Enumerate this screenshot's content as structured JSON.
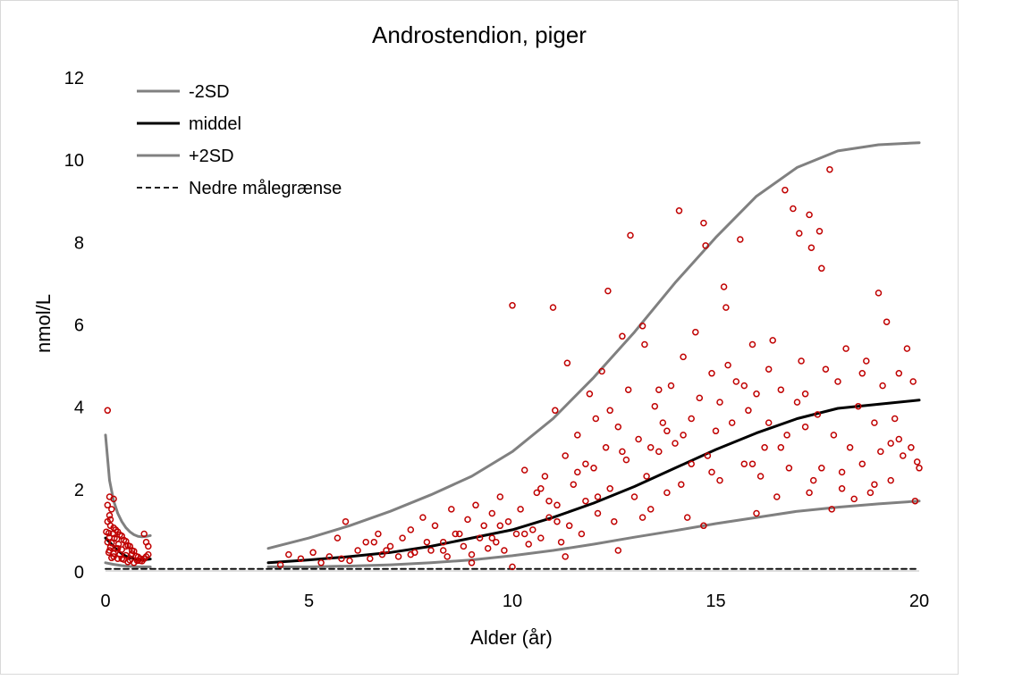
{
  "chart_data": {
    "type": "scatter",
    "title": "Androstendion, piger",
    "xlabel": "Alder (år)",
    "ylabel": "nmol/L",
    "xlim": [
      0,
      20
    ],
    "ylim": [
      0,
      12
    ],
    "xticks": [
      0,
      5,
      10,
      15,
      20
    ],
    "yticks": [
      0,
      2,
      4,
      6,
      8,
      10,
      12
    ],
    "grid": false,
    "legend_position": "top-left",
    "colors": {
      "sd_line": "#808080",
      "mean_line": "#000000",
      "limit_line": "#000000",
      "points": "#c00000"
    },
    "legend": [
      {
        "label": "-2SD",
        "style": "sd"
      },
      {
        "label": "middel",
        "style": "mean"
      },
      {
        "label": "+2SD",
        "style": "sd"
      },
      {
        "label": "Nedre målegrænse",
        "style": "dashed"
      }
    ],
    "series": [
      {
        "name": "+2SD",
        "style": "sd",
        "segments": [
          [
            [
              0,
              3.3
            ],
            [
              0.1,
              2.2
            ],
            [
              0.2,
              1.7
            ],
            [
              0.3,
              1.4
            ],
            [
              0.4,
              1.2
            ],
            [
              0.5,
              1.05
            ],
            [
              0.6,
              0.95
            ],
            [
              0.7,
              0.88
            ],
            [
              0.8,
              0.84
            ],
            [
              0.9,
              0.83
            ],
            [
              1.0,
              0.84
            ],
            [
              1.1,
              0.86
            ]
          ],
          [
            [
              4,
              0.55
            ],
            [
              5,
              0.8
            ],
            [
              6,
              1.1
            ],
            [
              7,
              1.45
            ],
            [
              8,
              1.85
            ],
            [
              9,
              2.3
            ],
            [
              10,
              2.9
            ],
            [
              11,
              3.7
            ],
            [
              12,
              4.7
            ],
            [
              13,
              5.8
            ],
            [
              14,
              7.0
            ],
            [
              15,
              8.1
            ],
            [
              16,
              9.1
            ],
            [
              17,
              9.8
            ],
            [
              18,
              10.2
            ],
            [
              19,
              10.35
            ],
            [
              20,
              10.4
            ]
          ]
        ]
      },
      {
        "name": "middel",
        "style": "mean",
        "segments": [
          [
            [
              0,
              0.8
            ],
            [
              0.1,
              0.7
            ],
            [
              0.2,
              0.6
            ],
            [
              0.3,
              0.5
            ],
            [
              0.4,
              0.42
            ],
            [
              0.5,
              0.36
            ],
            [
              0.6,
              0.32
            ],
            [
              0.7,
              0.3
            ],
            [
              0.8,
              0.28
            ],
            [
              0.9,
              0.28
            ],
            [
              1.0,
              0.28
            ],
            [
              1.1,
              0.29
            ]
          ],
          [
            [
              4,
              0.2
            ],
            [
              5,
              0.27
            ],
            [
              6,
              0.35
            ],
            [
              7,
              0.45
            ],
            [
              8,
              0.6
            ],
            [
              9,
              0.8
            ],
            [
              10,
              1.0
            ],
            [
              11,
              1.3
            ],
            [
              12,
              1.65
            ],
            [
              13,
              2.05
            ],
            [
              14,
              2.5
            ],
            [
              15,
              2.95
            ],
            [
              16,
              3.35
            ],
            [
              17,
              3.7
            ],
            [
              18,
              3.95
            ],
            [
              19,
              4.05
            ],
            [
              20,
              4.15
            ]
          ]
        ]
      },
      {
        "name": "-2SD",
        "style": "sd",
        "segments": [
          [
            [
              0,
              0.2
            ],
            [
              0.2,
              0.16
            ],
            [
              0.4,
              0.13
            ],
            [
              0.6,
              0.11
            ],
            [
              0.8,
              0.1
            ],
            [
              1.0,
              0.1
            ],
            [
              1.1,
              0.1
            ]
          ],
          [
            [
              4,
              0.1
            ],
            [
              5,
              0.1
            ],
            [
              6,
              0.12
            ],
            [
              7,
              0.15
            ],
            [
              8,
              0.2
            ],
            [
              9,
              0.27
            ],
            [
              10,
              0.37
            ],
            [
              11,
              0.5
            ],
            [
              12,
              0.65
            ],
            [
              13,
              0.82
            ],
            [
              14,
              0.98
            ],
            [
              15,
              1.15
            ],
            [
              16,
              1.3
            ],
            [
              17,
              1.45
            ],
            [
              18,
              1.55
            ],
            [
              19,
              1.63
            ],
            [
              20,
              1.7
            ]
          ]
        ]
      },
      {
        "name": "Nedre målegrænse",
        "style": "dashed",
        "segments": [
          [
            [
              0,
              0.05
            ],
            [
              20,
              0.05
            ]
          ]
        ]
      }
    ],
    "points": [
      [
        0.05,
        3.9
      ],
      [
        0.1,
        1.8
      ],
      [
        0.2,
        1.75
      ],
      [
        0.05,
        1.6
      ],
      [
        0.15,
        1.5
      ],
      [
        0.1,
        1.35
      ],
      [
        0.05,
        1.2
      ],
      [
        0.12,
        1.1
      ],
      [
        0.2,
        1.05
      ],
      [
        0.25,
        1.0
      ],
      [
        0.3,
        0.95
      ],
      [
        0.08,
        0.92
      ],
      [
        0.18,
        0.9
      ],
      [
        0.35,
        0.88
      ],
      [
        0.4,
        0.85
      ],
      [
        0.1,
        0.82
      ],
      [
        0.22,
        0.8
      ],
      [
        0.28,
        0.78
      ],
      [
        0.45,
        0.75
      ],
      [
        0.5,
        0.72
      ],
      [
        0.05,
        0.7
      ],
      [
        0.15,
        0.68
      ],
      [
        0.32,
        0.65
      ],
      [
        0.55,
        0.62
      ],
      [
        0.6,
        0.6
      ],
      [
        0.12,
        0.58
      ],
      [
        0.25,
        0.55
      ],
      [
        0.4,
        0.52
      ],
      [
        0.65,
        0.5
      ],
      [
        0.7,
        0.48
      ],
      [
        0.08,
        0.45
      ],
      [
        0.2,
        0.42
      ],
      [
        0.35,
        0.4
      ],
      [
        0.5,
        0.38
      ],
      [
        0.75,
        0.36
      ],
      [
        0.8,
        0.34
      ],
      [
        0.15,
        0.32
      ],
      [
        0.3,
        0.3
      ],
      [
        0.45,
        0.28
      ],
      [
        0.6,
        0.26
      ],
      [
        0.85,
        0.25
      ],
      [
        0.9,
        0.24
      ],
      [
        0.95,
        0.3
      ],
      [
        1.0,
        0.35
      ],
      [
        1.05,
        0.4
      ],
      [
        0.55,
        0.22
      ],
      [
        0.7,
        0.2
      ],
      [
        0.2,
        0.35
      ],
      [
        0.4,
        0.3
      ],
      [
        1.0,
        0.7
      ],
      [
        0.95,
        0.9
      ],
      [
        1.05,
        0.6
      ],
      [
        0.3,
        0.55
      ],
      [
        0.65,
        0.42
      ],
      [
        0.85,
        0.3
      ],
      [
        0.1,
        0.5
      ],
      [
        0.5,
        0.6
      ],
      [
        0.78,
        0.25
      ],
      [
        0.02,
        0.95
      ],
      [
        0.12,
        1.25
      ],
      [
        4.3,
        0.15
      ],
      [
        4.5,
        0.4
      ],
      [
        4.8,
        0.3
      ],
      [
        5.1,
        0.45
      ],
      [
        5.3,
        0.2
      ],
      [
        5.5,
        0.35
      ],
      [
        5.7,
        0.8
      ],
      [
        5.9,
        1.2
      ],
      [
        6.0,
        0.25
      ],
      [
        6.2,
        0.5
      ],
      [
        6.4,
        0.7
      ],
      [
        6.5,
        0.3
      ],
      [
        6.7,
        0.9
      ],
      [
        6.8,
        0.4
      ],
      [
        7.0,
        0.6
      ],
      [
        7.2,
        0.35
      ],
      [
        7.3,
        0.8
      ],
      [
        7.5,
        1.0
      ],
      [
        7.6,
        0.45
      ],
      [
        7.8,
        1.3
      ],
      [
        8.0,
        0.5
      ],
      [
        8.1,
        1.1
      ],
      [
        8.3,
        0.7
      ],
      [
        8.4,
        0.35
      ],
      [
        8.5,
        1.5
      ],
      [
        8.6,
        0.9
      ],
      [
        8.8,
        0.6
      ],
      [
        8.9,
        1.25
      ],
      [
        9.0,
        0.4
      ],
      [
        9.1,
        1.6
      ],
      [
        9.2,
        0.8
      ],
      [
        9.3,
        1.1
      ],
      [
        9.4,
        0.55
      ],
      [
        9.5,
        1.4
      ],
      [
        9.6,
        0.7
      ],
      [
        9.7,
        1.8
      ],
      [
        9.8,
        0.5
      ],
      [
        9.9,
        1.2
      ],
      [
        10.0,
        6.45
      ],
      [
        10.1,
        0.9
      ],
      [
        10.2,
        1.5
      ],
      [
        10.3,
        2.45
      ],
      [
        10.4,
        0.65
      ],
      [
        10.5,
        1.0
      ],
      [
        10.6,
        1.9
      ],
      [
        10.7,
        0.8
      ],
      [
        10.8,
        2.3
      ],
      [
        10.9,
        1.3
      ],
      [
        11.0,
        6.4
      ],
      [
        11.05,
        3.9
      ],
      [
        11.1,
        1.6
      ],
      [
        11.2,
        0.7
      ],
      [
        11.3,
        2.8
      ],
      [
        11.35,
        5.05
      ],
      [
        11.4,
        1.1
      ],
      [
        11.5,
        2.1
      ],
      [
        11.6,
        3.3
      ],
      [
        11.7,
        0.9
      ],
      [
        11.8,
        1.7
      ],
      [
        11.9,
        4.3
      ],
      [
        12.0,
        2.5
      ],
      [
        12.05,
        3.7
      ],
      [
        12.1,
        1.4
      ],
      [
        12.2,
        4.85
      ],
      [
        12.3,
        3.0
      ],
      [
        12.35,
        6.8
      ],
      [
        12.4,
        2.0
      ],
      [
        12.5,
        1.2
      ],
      [
        12.6,
        3.5
      ],
      [
        12.7,
        5.7
      ],
      [
        12.8,
        2.7
      ],
      [
        12.85,
        4.4
      ],
      [
        12.9,
        8.15
      ],
      [
        13.0,
        1.8
      ],
      [
        13.1,
        3.2
      ],
      [
        13.2,
        5.95
      ],
      [
        13.25,
        5.5
      ],
      [
        13.3,
        2.3
      ],
      [
        13.4,
        1.5
      ],
      [
        13.5,
        4.0
      ],
      [
        13.6,
        2.9
      ],
      [
        13.7,
        3.6
      ],
      [
        13.8,
        1.9
      ],
      [
        13.9,
        4.5
      ],
      [
        14.0,
        3.1
      ],
      [
        14.1,
        8.75
      ],
      [
        14.15,
        2.1
      ],
      [
        14.2,
        5.2
      ],
      [
        14.3,
        1.3
      ],
      [
        14.4,
        3.7
      ],
      [
        14.5,
        5.8
      ],
      [
        14.6,
        4.2
      ],
      [
        14.7,
        8.45
      ],
      [
        14.75,
        7.9
      ],
      [
        14.8,
        2.8
      ],
      [
        14.9,
        4.8
      ],
      [
        15.0,
        3.4
      ],
      [
        15.1,
        2.2
      ],
      [
        15.2,
        6.9
      ],
      [
        15.25,
        6.4
      ],
      [
        15.3,
        5.0
      ],
      [
        15.4,
        3.6
      ],
      [
        15.5,
        4.6
      ],
      [
        15.6,
        8.05
      ],
      [
        15.7,
        2.6
      ],
      [
        15.8,
        3.9
      ],
      [
        15.9,
        5.5
      ],
      [
        16.0,
        4.3
      ],
      [
        16.1,
        2.3
      ],
      [
        16.2,
        3.0
      ],
      [
        16.3,
        4.9
      ],
      [
        16.4,
        5.6
      ],
      [
        16.5,
        1.8
      ],
      [
        16.6,
        4.4
      ],
      [
        16.7,
        9.25
      ],
      [
        16.75,
        3.3
      ],
      [
        16.8,
        2.5
      ],
      [
        16.9,
        8.8
      ],
      [
        17.0,
        4.1
      ],
      [
        17.05,
        8.2
      ],
      [
        17.1,
        5.1
      ],
      [
        17.2,
        3.5
      ],
      [
        17.3,
        8.65
      ],
      [
        17.35,
        7.85
      ],
      [
        17.4,
        2.2
      ],
      [
        17.5,
        3.8
      ],
      [
        17.55,
        8.25
      ],
      [
        17.6,
        7.35
      ],
      [
        17.7,
        4.9
      ],
      [
        17.8,
        9.75
      ],
      [
        17.85,
        1.5
      ],
      [
        17.9,
        3.3
      ],
      [
        18.0,
        4.6
      ],
      [
        18.1,
        2.0
      ],
      [
        18.2,
        5.4
      ],
      [
        18.3,
        3.0
      ],
      [
        18.4,
        1.75
      ],
      [
        18.5,
        4.0
      ],
      [
        18.6,
        2.6
      ],
      [
        18.7,
        5.1
      ],
      [
        18.8,
        1.9
      ],
      [
        18.9,
        3.6
      ],
      [
        19.0,
        6.75
      ],
      [
        19.05,
        2.9
      ],
      [
        19.1,
        4.5
      ],
      [
        19.2,
        6.05
      ],
      [
        19.3,
        2.2
      ],
      [
        19.4,
        3.7
      ],
      [
        19.5,
        4.8
      ],
      [
        19.6,
        2.8
      ],
      [
        19.7,
        5.4
      ],
      [
        19.8,
        3.0
      ],
      [
        19.85,
        4.6
      ],
      [
        19.9,
        1.7
      ],
      [
        19.95,
        2.65
      ],
      [
        20.0,
        2.5
      ],
      [
        19.5,
        3.2
      ],
      [
        18.6,
        4.8
      ],
      [
        17.2,
        4.3
      ],
      [
        16.3,
        3.6
      ],
      [
        15.7,
        4.5
      ],
      [
        14.4,
        2.6
      ],
      [
        13.6,
        4.4
      ],
      [
        12.7,
        2.9
      ],
      [
        11.8,
        2.6
      ],
      [
        10.9,
        1.7
      ],
      [
        9.5,
        0.8
      ],
      [
        8.7,
        0.9
      ],
      [
        7.9,
        0.7
      ],
      [
        6.9,
        0.5
      ],
      [
        5.8,
        0.3
      ],
      [
        10.0,
        0.1
      ],
      [
        11.3,
        0.35
      ],
      [
        12.6,
        0.5
      ],
      [
        9.0,
        0.2
      ],
      [
        14.7,
        1.1
      ],
      [
        16.0,
        1.4
      ],
      [
        17.3,
        1.9
      ],
      [
        18.1,
        2.4
      ],
      [
        13.2,
        1.3
      ],
      [
        12.1,
        1.8
      ],
      [
        10.7,
        2.0
      ],
      [
        11.6,
        2.4
      ],
      [
        13.8,
        3.4
      ],
      [
        15.1,
        4.1
      ],
      [
        16.6,
        3.0
      ],
      [
        17.6,
        2.5
      ],
      [
        18.9,
        2.1
      ],
      [
        19.3,
        3.1
      ],
      [
        14.9,
        2.4
      ],
      [
        15.9,
        2.6
      ],
      [
        14.2,
        3.3
      ],
      [
        13.4,
        3.0
      ],
      [
        12.4,
        3.9
      ],
      [
        11.1,
        1.2
      ],
      [
        10.3,
        0.9
      ],
      [
        9.7,
        1.1
      ],
      [
        8.3,
        0.5
      ],
      [
        7.5,
        0.4
      ],
      [
        6.6,
        0.7
      ]
    ]
  }
}
